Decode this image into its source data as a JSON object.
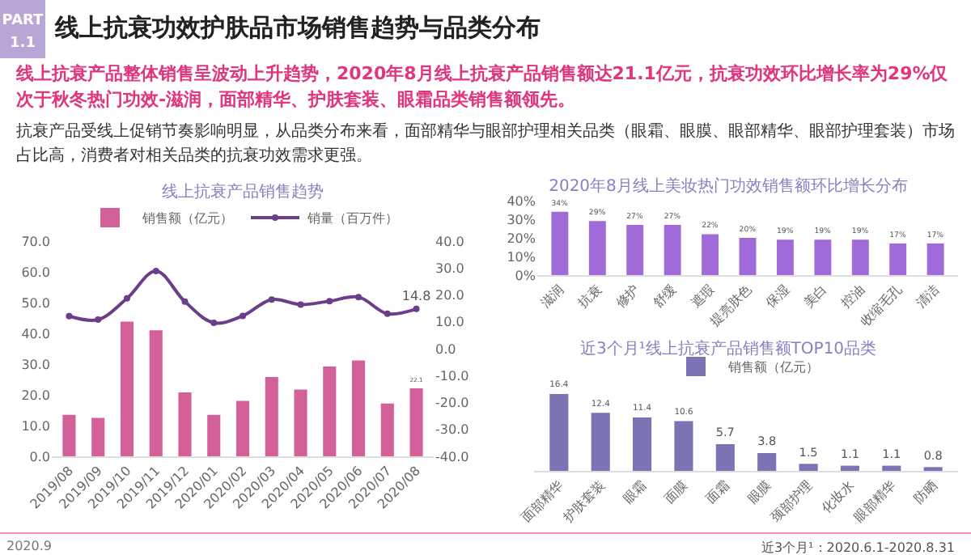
{
  "chart_data": [
    {
      "type": "other",
      "title": "线上抗衰功效护肤品市场销售趋势与品类分布",
      "subtitle": "线上抗衰产品整体销售呈波动上升趋势，2020年8月线上抗衰产品销售额达21.1亿元，抗衰功效环比增长率为29%仅次于秋冬热门功效-滋润，面部精华、护肤套装、眼霜品类销售额领先。",
      "annotations": [
        "PART 1.1",
        "抗衰产品受线上促销节奏影响明显，从品类分布来看，面部精华与眼部护理相关品类（眼霜、眼膜、眼部精华、眼部护理套装）市场占比高，消费者对相关品类的抗衰功效需求更强。",
        "2020.9"
      ]
    },
    {
      "type": "bar",
      "title": "线上抗衰产品销售趋势",
      "categories": [
        "2019/08",
        "2019/09",
        "2019/10",
        "2019/11",
        "2019/12",
        "2020/01",
        "2020/02",
        "2020/03",
        "2020/04",
        "2020/05",
        "2020/06",
        "2020/07",
        "2020/08"
      ],
      "series": [
        {
          "name": "销售额（亿元）",
          "type": "bar",
          "color": "#d4609a",
          "values": [
            13.5,
            12.5,
            43.8,
            41.0,
            20.8,
            13.5,
            18.0,
            25.8,
            21.7,
            29.2,
            31.2,
            17.2,
            22.1
          ],
          "value_labels": [
            null,
            null,
            null,
            null,
            null,
            null,
            null,
            null,
            null,
            null,
            null,
            null,
            "22.1"
          ]
        },
        {
          "name": "销量（百万件）",
          "type": "line",
          "axis": "y2",
          "color": "#6b3d8a",
          "values": [
            12.1,
            10.8,
            18.7,
            28.9,
            17.5,
            9.6,
            12.2,
            18.3,
            16.4,
            17.7,
            19.2,
            13.0,
            14.8
          ],
          "value_labels": [
            null,
            null,
            null,
            null,
            null,
            null,
            null,
            null,
            null,
            null,
            null,
            null,
            "14.8"
          ]
        }
      ],
      "ylim": [
        0,
        70
      ],
      "yticks": [
        {
          "value": 0,
          "label": "0.0"
        },
        {
          "value": 10,
          "label": "10.0"
        },
        {
          "value": 20,
          "label": "20.0"
        },
        {
          "value": 30,
          "label": "30.0"
        },
        {
          "value": 40,
          "label": "40.0"
        },
        {
          "value": 50,
          "label": "50.0"
        },
        {
          "value": 60,
          "label": "60.0"
        },
        {
          "value": 70,
          "label": "70.0"
        }
      ],
      "y2lim": [
        -40,
        40
      ],
      "y2ticks": [
        {
          "value": -40,
          "label": "-40.0"
        },
        {
          "value": -30,
          "label": "-30.0"
        },
        {
          "value": -20,
          "label": "-20.0"
        },
        {
          "value": -10,
          "label": "-10.0"
        },
        {
          "value": 0,
          "label": "0.0"
        },
        {
          "value": 10,
          "label": "10.0"
        },
        {
          "value": 20,
          "label": "20.0"
        },
        {
          "value": 30,
          "label": "30.0"
        },
        {
          "value": 40,
          "label": "40.0"
        }
      ],
      "legend": "top",
      "marker": "circle",
      "line_style": "solid",
      "grid": false
    },
    {
      "type": "bar",
      "title": "2020年8月线上美妆热门功效销售额环比增长分布",
      "categories": [
        "滋润",
        "抗衰",
        "修护",
        "舒缓",
        "遮瑕",
        "提亮肤色",
        "保湿",
        "美白",
        "控油",
        "收缩毛孔",
        "清洁"
      ],
      "series": [
        {
          "color": "#a06ad8",
          "values": [
            34,
            29,
            27,
            27,
            22,
            20,
            19,
            19,
            19,
            17,
            17
          ],
          "value_labels": [
            "34%",
            "29%",
            "27%",
            "27%",
            "22%",
            "20%",
            "19%",
            "19%",
            "19%",
            "17%",
            "17%"
          ]
        }
      ],
      "ylim": [
        0,
        40
      ],
      "yticks": [
        {
          "value": 0,
          "label": "0%"
        },
        {
          "value": 10,
          "label": "10%"
        },
        {
          "value": 20,
          "label": "20%"
        },
        {
          "value": 30,
          "label": "30%"
        },
        {
          "value": 40,
          "label": "40%"
        }
      ],
      "grid": false
    },
    {
      "type": "bar",
      "title": "近3个月¹线上抗衰产品销售额TOP10品类",
      "categories": [
        "面部精华",
        "护肤套装",
        "眼霜",
        "面膜",
        "面霜",
        "眼膜",
        "颈部护理",
        "化妆水",
        "眼部精华",
        "防晒"
      ],
      "series": [
        {
          "name": "销售额（亿元）",
          "color": "#7a74b4",
          "values": [
            16.4,
            12.4,
            11.4,
            10.6,
            5.7,
            3.8,
            1.5,
            1.1,
            1.1,
            0.8
          ]
        }
      ],
      "data_labels": true,
      "tick_labels": "x",
      "legend": "top",
      "grid": false,
      "annotations": [
        "近3个月¹：2020.6.1-2020.8.31"
      ]
    }
  ]
}
